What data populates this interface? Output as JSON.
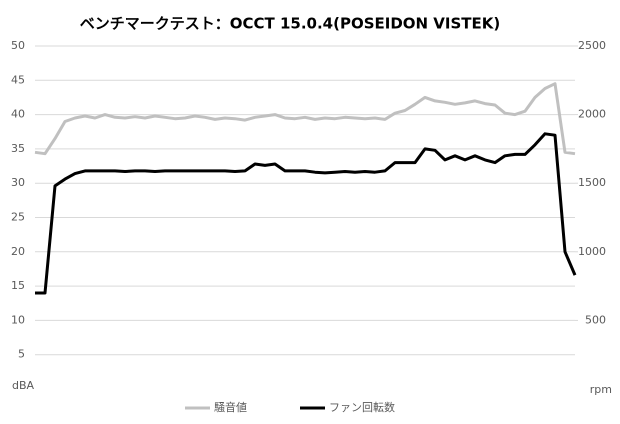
{
  "chart_data": {
    "type": "line",
    "title": "ベンチマークテスト：OCCT 15.0.4(POSEIDON VISTEK)",
    "y_label": "dBA",
    "y2_label": "rpm",
    "ylim": [
      0,
      50
    ],
    "yticks": [
      5,
      10,
      15,
      20,
      25,
      30,
      35,
      40,
      45,
      50
    ],
    "y2lim": [
      0,
      2500
    ],
    "y2ticks": [
      500,
      1000,
      1500,
      2000,
      2500
    ],
    "grid": true,
    "legend": "bottom",
    "series": [
      {
        "name": "騒音値",
        "color": "#c0c0c0",
        "values": [
          34.5,
          34.3,
          36.5,
          39,
          39.5,
          39.8,
          39.5,
          40,
          39.6,
          39.5,
          39.7,
          39.5,
          39.8,
          39.6,
          39.4,
          39.5,
          39.8,
          39.6,
          39.3,
          39.5,
          39.4,
          39.2,
          39.6,
          39.8,
          40,
          39.5,
          39.4,
          39.6,
          39.3,
          39.5,
          39.4,
          39.6,
          39.5,
          39.4,
          39.5,
          39.3,
          40.2,
          40.6,
          41.5,
          42.5,
          42,
          41.8,
          41.5,
          41.7,
          42,
          41.6,
          41.4,
          40.2,
          40,
          40.5,
          42.5,
          43.8,
          44.5,
          34.5,
          34.3
        ]
      },
      {
        "name": "ファン回転数",
        "color": "#000000",
        "axis": "y2",
        "values": [
          700,
          700,
          1480,
          1530,
          1570,
          1590,
          1590,
          1590,
          1590,
          1585,
          1590,
          1590,
          1585,
          1590,
          1590,
          1590,
          1590,
          1590,
          1590,
          1590,
          1585,
          1590,
          1640,
          1630,
          1640,
          1590,
          1590,
          1590,
          1580,
          1575,
          1580,
          1585,
          1580,
          1585,
          1580,
          1590,
          1650,
          1650,
          1650,
          1750,
          1740,
          1670,
          1700,
          1670,
          1700,
          1670,
          1650,
          1700,
          1710,
          1710,
          1780,
          1860,
          1850,
          1000,
          830
        ]
      }
    ]
  }
}
